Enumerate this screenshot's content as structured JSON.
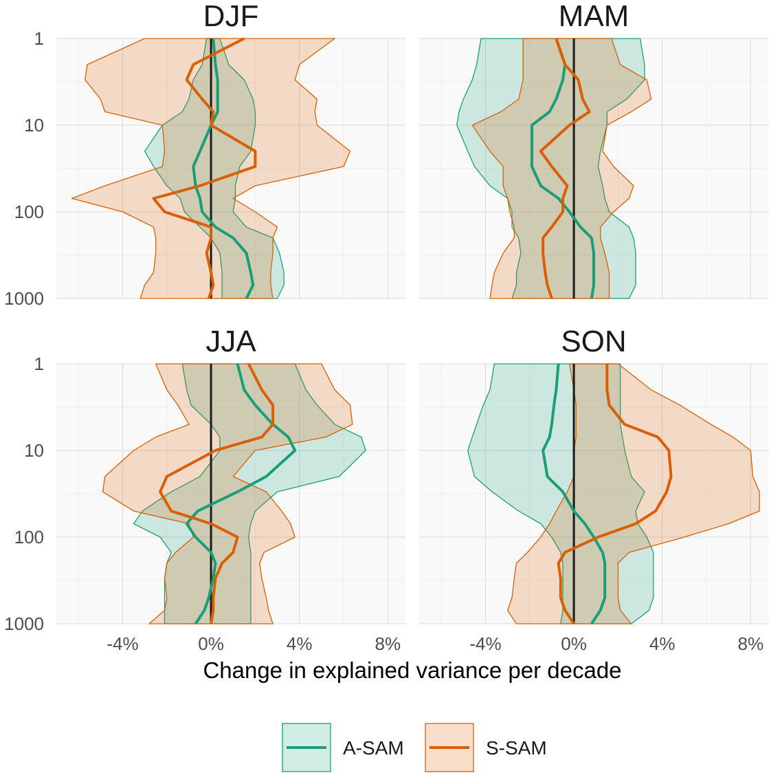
{
  "chart_data": {
    "type": "line",
    "facets": [
      "DJF",
      "MAM",
      "JJA",
      "SON"
    ],
    "xlabel": "Change in explained variance per decade",
    "ylabel": "",
    "y_scale": "log-reversed",
    "ylim": [
      1000,
      1
    ],
    "y_ticks": [
      1,
      10,
      100,
      1000
    ],
    "y_tick_labels": [
      "1",
      "10",
      "100",
      "1000"
    ],
    "xlim": [
      -7.0,
      8.8
    ],
    "x_ticks": [
      -4,
      0,
      4,
      8
    ],
    "x_tick_labels": [
      "-4%",
      "0%",
      "4%",
      "8%"
    ],
    "grid": true,
    "zero_line": true,
    "legend_position": "bottom",
    "colors": {
      "A-SAM": "#1b9e77",
      "S-SAM": "#d95f02",
      "A-SAM-fill": "#1b9e77",
      "S-SAM-fill": "#d95f02",
      "zero-line": "#1a1a1a"
    },
    "legend": [
      "A-SAM",
      "S-SAM"
    ],
    "units": "%",
    "levels": [
      1,
      2,
      3,
      5,
      7,
      10,
      20,
      30,
      50,
      70,
      100,
      150,
      200,
      300,
      500,
      700,
      1000
    ],
    "panels": [
      {
        "title": "DJF",
        "series": [
          {
            "name": "A-SAM",
            "mean": [
              0.1,
              0.2,
              0.3,
              0.3,
              0.3,
              0.0,
              -0.5,
              -0.8,
              -0.7,
              -0.5,
              -0.4,
              0.2,
              1.0,
              1.6,
              1.8,
              1.9,
              1.6
            ],
            "lower": [
              -0.2,
              -0.4,
              -0.8,
              -1.0,
              -1.3,
              -2.2,
              -3.0,
              -2.6,
              -2.0,
              -1.4,
              -1.2,
              -0.5,
              0.0,
              0.4,
              0.5,
              0.5,
              0.5
            ],
            "upper": [
              0.4,
              0.8,
              1.5,
              1.9,
              2.0,
              2.0,
              1.8,
              1.3,
              1.1,
              1.1,
              1.0,
              1.6,
              2.8,
              3.1,
              3.3,
              3.3,
              3.0
            ]
          },
          {
            "name": "S-SAM",
            "mean": [
              1.5,
              -0.8,
              -1.1,
              -0.4,
              0.1,
              0.0,
              2.0,
              2.0,
              -0.5,
              -2.6,
              -2.1,
              0.0,
              0.0,
              -0.2,
              0.0,
              0.1,
              -0.1
            ],
            "lower": [
              -3.0,
              -5.6,
              -5.7,
              -5.0,
              -4.8,
              -2.2,
              -2.1,
              -2.2,
              -4.8,
              -6.3,
              -4.0,
              -2.6,
              -2.5,
              -2.5,
              -2.6,
              -3.0,
              -3.2
            ],
            "upper": [
              5.6,
              4.0,
              3.8,
              4.8,
              4.7,
              4.8,
              6.3,
              6.0,
              2.0,
              1.0,
              2.0,
              3.0,
              2.8,
              2.8,
              2.7,
              2.7,
              2.8
            ]
          }
        ]
      },
      {
        "title": "MAM",
        "series": [
          {
            "name": "A-SAM",
            "mean": [
              -0.8,
              -0.4,
              -0.5,
              -0.8,
              -1.1,
              -1.9,
              -1.9,
              -1.9,
              -1.5,
              -0.7,
              -0.2,
              0.3,
              0.8,
              0.9,
              0.9,
              0.9,
              0.8
            ],
            "lower": [
              -4.2,
              -4.4,
              -4.6,
              -5.0,
              -5.2,
              -5.3,
              -4.8,
              -4.5,
              -3.8,
              -3.0,
              -2.8,
              -2.8,
              -2.5,
              -2.4,
              -2.6,
              -2.6,
              -2.8
            ],
            "upper": [
              3.0,
              3.2,
              3.2,
              2.4,
              1.5,
              1.5,
              1.2,
              1.1,
              1.3,
              1.4,
              1.6,
              2.5,
              2.7,
              2.8,
              2.8,
              2.8,
              2.5
            ]
          },
          {
            "name": "S-SAM",
            "mean": [
              -0.8,
              -0.4,
              0.2,
              0.4,
              0.7,
              -0.2,
              -1.5,
              -1.0,
              -0.3,
              -0.5,
              -0.5,
              -1.0,
              -1.4,
              -1.4,
              -1.3,
              -1.2,
              -1.0
            ],
            "lower": [
              -2.3,
              -2.3,
              -2.3,
              -2.5,
              -3.3,
              -4.6,
              -3.8,
              -3.2,
              -3.2,
              -3.0,
              -2.9,
              -2.7,
              -2.7,
              -3.2,
              -3.6,
              -3.7,
              -3.8
            ],
            "upper": [
              1.7,
              2.1,
              3.3,
              3.5,
              2.6,
              1.5,
              1.3,
              1.8,
              2.7,
              2.5,
              1.8,
              1.2,
              1.2,
              1.4,
              1.6,
              1.6,
              1.6
            ]
          }
        ]
      },
      {
        "title": "JJA",
        "series": [
          {
            "name": "A-SAM",
            "mean": [
              1.2,
              1.5,
              2.0,
              2.8,
              3.5,
              3.8,
              2.5,
              1.2,
              -0.6,
              -1.1,
              -0.7,
              0.0,
              0.2,
              0.1,
              -0.1,
              -0.3,
              -0.7
            ],
            "lower": [
              -1.3,
              -1.1,
              -0.9,
              0.0,
              0.4,
              0.4,
              -0.5,
              -1.8,
              -3.1,
              -3.5,
              -2.3,
              -1.8,
              -2.0,
              -2.1,
              -2.1,
              -2.1,
              -2.1
            ],
            "upper": [
              3.8,
              4.3,
              4.8,
              5.6,
              6.8,
              7.0,
              5.8,
              3.0,
              2.0,
              1.8,
              1.7,
              1.8,
              1.8,
              1.8,
              1.8,
              1.8,
              1.8
            ]
          },
          {
            "name": "S-SAM",
            "mean": [
              1.7,
              2.3,
              2.8,
              2.8,
              2.3,
              0.2,
              -2.0,
              -2.3,
              -1.8,
              0.0,
              1.2,
              1.0,
              0.5,
              0.2,
              0.1,
              0.1,
              0.0
            ],
            "lower": [
              -2.5,
              -2.0,
              -1.5,
              -1.0,
              -2.5,
              -3.5,
              -4.8,
              -4.9,
              -3.5,
              -1.0,
              -0.8,
              -1.6,
              -2.0,
              -2.1,
              -2.0,
              -2.1,
              -2.8
            ],
            "upper": [
              5.0,
              5.6,
              6.3,
              6.4,
              5.2,
              2.0,
              1.0,
              2.5,
              3.2,
              3.6,
              3.8,
              2.4,
              2.2,
              2.3,
              2.5,
              2.6,
              2.8
            ]
          }
        ]
      },
      {
        "title": "SON",
        "series": [
          {
            "name": "A-SAM",
            "mean": [
              -0.7,
              -0.8,
              -0.9,
              -1.0,
              -1.1,
              -1.4,
              -1.2,
              -0.5,
              0.0,
              0.5,
              0.9,
              1.3,
              1.4,
              1.4,
              1.4,
              1.2,
              0.8
            ],
            "lower": [
              -3.6,
              -3.8,
              -4.1,
              -4.4,
              -4.6,
              -4.8,
              -4.5,
              -3.7,
              -2.5,
              -1.5,
              -1.0,
              -0.6,
              -0.5,
              -0.5,
              -0.5,
              -0.5,
              -0.6
            ],
            "upper": [
              2.1,
              2.1,
              2.1,
              2.1,
              2.2,
              2.3,
              2.6,
              3.2,
              2.8,
              2.9,
              3.3,
              3.6,
              3.6,
              3.6,
              3.6,
              3.4,
              2.6
            ]
          },
          {
            "name": "S-SAM",
            "mean": [
              1.5,
              1.5,
              1.6,
              2.3,
              3.8,
              4.3,
              4.4,
              4.2,
              3.7,
              2.8,
              1.1,
              -0.4,
              -0.7,
              -0.6,
              -0.6,
              -0.4,
              0.0
            ],
            "lower": [
              -0.2,
              0.0,
              0.1,
              0.1,
              0.1,
              0.0,
              0.0,
              -0.3,
              -0.8,
              -1.1,
              -1.5,
              -2.1,
              -2.6,
              -2.7,
              -2.8,
              -3.0,
              -2.6
            ],
            "upper": [
              2.0,
              3.5,
              4.8,
              6.2,
              7.2,
              8.0,
              8.1,
              8.4,
              8.4,
              7.0,
              5.0,
              2.5,
              2.0,
              2.0,
              2.0,
              2.1,
              2.6
            ]
          }
        ]
      }
    ]
  }
}
